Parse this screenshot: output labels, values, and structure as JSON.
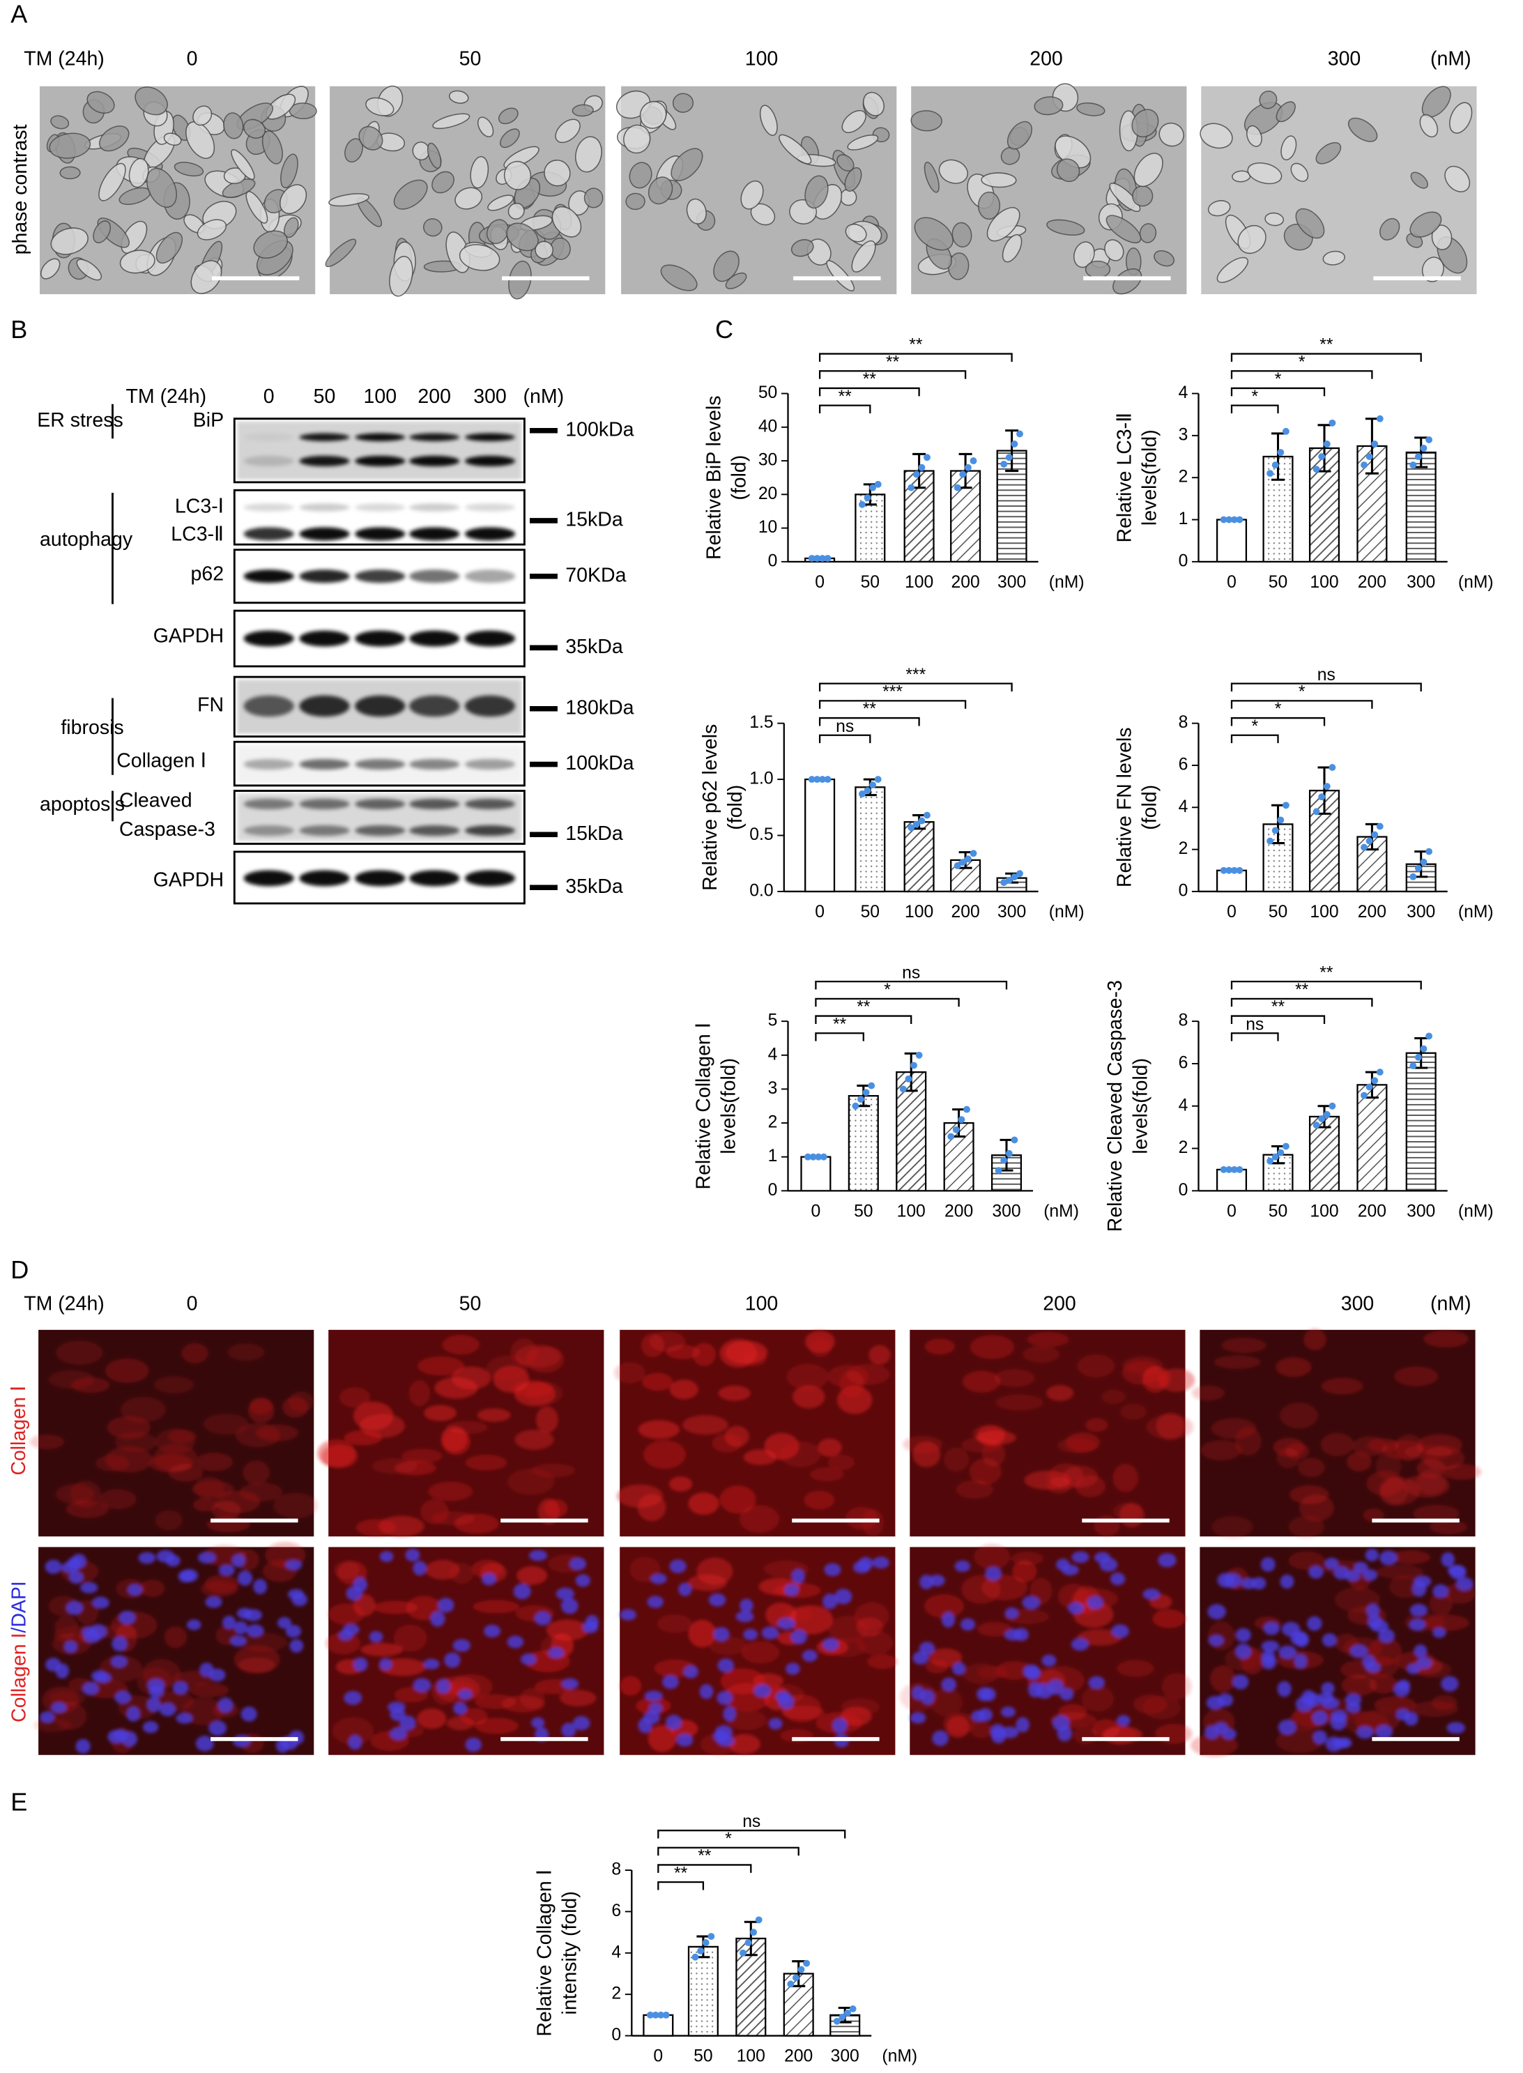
{
  "panel_labels": [
    "A",
    "B",
    "C",
    "D",
    "E"
  ],
  "phase": {
    "treatment": "TM (24h)",
    "doses": [
      "0",
      "50",
      "100",
      "200",
      "300"
    ],
    "unit": "(nM)",
    "row_label": "phase contrast"
  },
  "blot": {
    "treatment": "TM (24h)",
    "doses": [
      "0",
      "50",
      "100",
      "200",
      "300"
    ],
    "unit": "(nM)",
    "groups": [
      "ER stress",
      "autophagy",
      "fibrosis",
      "apoptosis"
    ],
    "bands": [
      "BiP",
      "LC3-Ⅰ",
      "LC3-Ⅱ",
      "p62",
      "GAPDH",
      "FN",
      "Collagen Ⅰ",
      "Cleaved",
      "Caspase-3",
      "GAPDH"
    ],
    "markers": [
      "100kDa",
      "15kDa",
      "70KDa",
      "35kDa",
      "180kDa",
      "100kDa",
      "15kDa",
      "35kDa"
    ]
  },
  "chart_data": [
    {
      "type": "bar",
      "ylabel": [
        "Relative BiP levels",
        "(fold)"
      ],
      "categories": [
        "0",
        "50",
        "100",
        "200",
        "300"
      ],
      "xlabel": "(nM)",
      "values": [
        1,
        20,
        27,
        27,
        33
      ],
      "errors": [
        0.3,
        3,
        5,
        5,
        6
      ],
      "points": [
        [
          1,
          1,
          1,
          1
        ],
        [
          17,
          19,
          22,
          23
        ],
        [
          22,
          26,
          28,
          31
        ],
        [
          22,
          26,
          28,
          30
        ],
        [
          29,
          31,
          35,
          38
        ]
      ],
      "point_color": "#4a90e2",
      "ylim": [
        0,
        50
      ],
      "yticks": [
        0,
        10,
        20,
        30,
        40,
        50
      ],
      "significance": [
        null,
        "**",
        "**",
        "**",
        "**"
      ]
    },
    {
      "type": "bar",
      "ylabel": [
        "Relative LC3-Ⅱ",
        "levels(fold)"
      ],
      "categories": [
        "0",
        "50",
        "100",
        "200",
        "300"
      ],
      "xlabel": "(nM)",
      "values": [
        1,
        2.5,
        2.7,
        2.75,
        2.6
      ],
      "errors": [
        0,
        0.55,
        0.55,
        0.65,
        0.35
      ],
      "points": [
        [
          1,
          1,
          1,
          1
        ],
        [
          2.1,
          2.3,
          2.6,
          3.1
        ],
        [
          2.2,
          2.5,
          2.8,
          3.3
        ],
        [
          2.3,
          2.5,
          2.8,
          3.4
        ],
        [
          2.3,
          2.5,
          2.7,
          2.9
        ]
      ],
      "point_color": "#4a90e2",
      "ylim": [
        0,
        4
      ],
      "yticks": [
        0,
        1,
        2,
        3,
        4
      ],
      "significance": [
        null,
        "*",
        "*",
        "*",
        "**"
      ]
    },
    {
      "type": "bar",
      "ylabel": [
        "Relative p62 levels",
        "(fold)"
      ],
      "categories": [
        "0",
        "50",
        "100",
        "200",
        "300"
      ],
      "xlabel": "(nM)",
      "values": [
        1,
        0.93,
        0.62,
        0.28,
        0.12
      ],
      "errors": [
        0,
        0.07,
        0.06,
        0.07,
        0.04
      ],
      "points": [
        [
          1,
          1,
          1,
          1
        ],
        [
          0.87,
          0.9,
          0.95,
          1.0
        ],
        [
          0.57,
          0.6,
          0.63,
          0.68
        ],
        [
          0.23,
          0.26,
          0.29,
          0.34
        ],
        [
          0.08,
          0.1,
          0.13,
          0.16
        ]
      ],
      "point_color": "#4a90e2",
      "ylim": [
        0,
        1.5
      ],
      "yticks": [
        {
          "value": 0,
          "label": "0.0"
        },
        {
          "value": 0.5,
          "label": "0.5"
        },
        {
          "value": 1,
          "label": "1.0"
        },
        {
          "value": 1.5,
          "label": "1.5"
        }
      ],
      "significance": [
        null,
        "ns",
        "**",
        "***",
        "***"
      ]
    },
    {
      "type": "bar",
      "ylabel": [
        "Relative FN levels",
        "(fold)"
      ],
      "categories": [
        "0",
        "50",
        "100",
        "200",
        "300"
      ],
      "xlabel": "(nM)",
      "values": [
        1,
        3.2,
        4.8,
        2.6,
        1.3
      ],
      "errors": [
        0,
        0.9,
        1.1,
        0.6,
        0.6
      ],
      "points": [
        [
          1,
          1,
          1,
          1
        ],
        [
          2.4,
          2.9,
          3.4,
          4.1
        ],
        [
          3.8,
          4.5,
          5.0,
          5.9
        ],
        [
          2.1,
          2.4,
          2.7,
          3.1
        ],
        [
          0.7,
          1.1,
          1.4,
          1.9
        ]
      ],
      "point_color": "#4a90e2",
      "ylim": [
        0,
        8
      ],
      "yticks": [
        0,
        2,
        4,
        6,
        8
      ],
      "significance": [
        null,
        "*",
        "*",
        "*",
        "ns"
      ]
    },
    {
      "type": "bar",
      "ylabel": [
        "Relative  Collagen  Ⅰ",
        "levels(fold)"
      ],
      "categories": [
        "0",
        "50",
        "100",
        "200",
        "300"
      ],
      "xlabel": "(nM)",
      "values": [
        1,
        2.8,
        3.5,
        2.0,
        1.05
      ],
      "errors": [
        0,
        0.3,
        0.55,
        0.4,
        0.45
      ],
      "points": [
        [
          1,
          1,
          1,
          1
        ],
        [
          2.5,
          2.7,
          2.9,
          3.1
        ],
        [
          3.0,
          3.3,
          3.7,
          4.0
        ],
        [
          1.6,
          1.8,
          2.1,
          2.4
        ],
        [
          0.6,
          0.9,
          1.1,
          1.5
        ]
      ],
      "point_color": "#4a90e2",
      "ylim": [
        0,
        5
      ],
      "yticks": [
        0,
        1,
        2,
        3,
        4,
        5
      ],
      "significance": [
        null,
        "**",
        "**",
        "*",
        "ns"
      ]
    },
    {
      "type": "bar",
      "ylabel": [
        "Relative Cleaved Caspase-3",
        "levels(fold)"
      ],
      "categories": [
        "0",
        "50",
        "100",
        "200",
        "300"
      ],
      "xlabel": "(nM)",
      "values": [
        1,
        1.7,
        3.5,
        5.0,
        6.5
      ],
      "errors": [
        0,
        0.4,
        0.5,
        0.6,
        0.7
      ],
      "points": [
        [
          1,
          1,
          1,
          1
        ],
        [
          1.4,
          1.6,
          1.8,
          2.1
        ],
        [
          3.1,
          3.4,
          3.6,
          4.0
        ],
        [
          4.5,
          4.9,
          5.2,
          5.6
        ],
        [
          5.9,
          6.3,
          6.7,
          7.3
        ]
      ],
      "point_color": "#4a90e2",
      "ylim": [
        0,
        8
      ],
      "yticks": [
        0,
        2,
        4,
        6,
        8
      ],
      "significance": [
        null,
        "ns",
        "**",
        "**",
        "**"
      ]
    },
    {
      "type": "bar",
      "ylabel": [
        "Relative Collagen Ⅰ",
        "intensity (fold)"
      ],
      "categories": [
        "0",
        "50",
        "100",
        "200",
        "300"
      ],
      "xlabel": "(nM)",
      "values": [
        1,
        4.3,
        4.7,
        3.0,
        1.0
      ],
      "errors": [
        0,
        0.5,
        0.8,
        0.6,
        0.35
      ],
      "points": [
        [
          1,
          1,
          1,
          1
        ],
        [
          3.8,
          4.1,
          4.5,
          4.8
        ],
        [
          4.0,
          4.5,
          5.0,
          5.6
        ],
        [
          2.5,
          2.8,
          3.2,
          3.5
        ],
        [
          0.7,
          0.9,
          1.1,
          1.3
        ]
      ],
      "point_color": "#4a90e2",
      "ylim": [
        0,
        8
      ],
      "yticks": [
        0,
        2,
        4,
        6,
        8
      ],
      "significance": [
        null,
        "**",
        "**",
        "*",
        "ns"
      ]
    }
  ],
  "fluor": {
    "treatment": "TM (24h)",
    "doses": [
      "0",
      "50",
      "100",
      "200",
      "300"
    ],
    "unit": "(nM)",
    "row_label": "Collagen Ⅰ",
    "merge_label": [
      "Collagen I",
      "/DAPI"
    ]
  }
}
